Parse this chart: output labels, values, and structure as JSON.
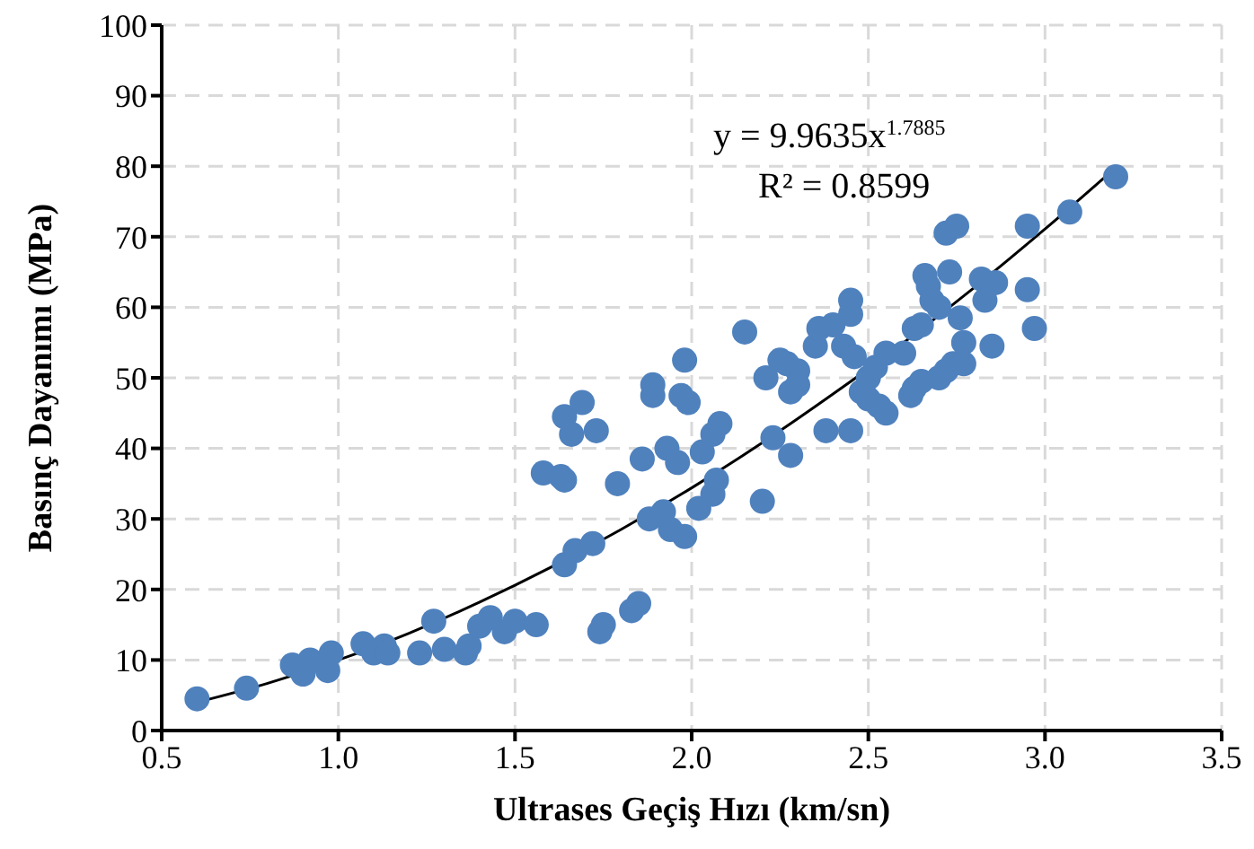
{
  "chart_data": {
    "type": "scatter",
    "xlabel": "Ultrases Geçiş Hızı (km/sn)",
    "ylabel": "Basınç Dayanımı (MPa)",
    "annotations": [
      "y = 9.9635x$^{1.7885}$",
      "R² = 0.8599"
    ],
    "xlim": [
      0.5,
      3.5
    ],
    "xticks": [
      0.5,
      {
        "value": 1,
        "label": "1.0"
      },
      1.5,
      {
        "value": 2,
        "label": "2.0"
      },
      2.5,
      {
        "value": 3,
        "label": "3.0"
      },
      3.5
    ],
    "ylim": [
      0,
      100
    ],
    "yticks": [
      0,
      10,
      20,
      30,
      40,
      50,
      60,
      70,
      80,
      90,
      100
    ],
    "grid": true,
    "legend": false,
    "series": [
      {
        "color": "#4f81bd",
        "marker": "circle",
        "x": [
          0.6,
          0.74,
          0.87,
          0.9,
          0.92,
          0.97,
          0.98,
          1.07,
          1.1,
          1.13,
          1.14,
          1.23,
          1.27,
          1.3,
          1.36,
          1.37,
          1.4,
          1.43,
          1.47,
          1.5,
          1.56,
          1.58,
          1.63,
          1.64,
          1.64,
          1.66,
          1.69,
          1.67,
          1.64,
          1.72,
          1.73,
          1.74,
          1.75,
          1.79,
          1.83,
          1.85,
          1.86,
          1.88,
          1.89,
          1.89,
          1.92,
          1.93,
          1.94,
          1.96,
          1.97,
          1.98,
          1.98,
          1.99,
          2.02,
          2.03,
          2.06,
          2.06,
          2.07,
          2.08,
          2.15,
          2.2,
          2.21,
          2.23,
          2.25,
          2.27,
          2.28,
          2.28,
          2.3,
          2.3,
          2.35,
          2.36,
          2.38,
          2.4,
          2.43,
          2.45,
          2.45,
          2.45,
          2.46,
          2.48,
          2.5,
          2.5,
          2.52,
          2.53,
          2.55,
          2.55,
          2.6,
          2.62,
          2.63,
          2.63,
          2.65,
          2.65,
          2.66,
          2.67,
          2.68,
          2.7,
          2.7,
          2.72,
          2.72,
          2.73,
          2.74,
          2.75,
          2.76,
          2.77,
          2.77,
          2.82,
          2.83,
          2.85,
          2.86,
          2.95,
          2.95,
          2.97,
          3.07,
          3.2
        ],
        "values": [
          4.5,
          6,
          9.3,
          8,
          10,
          8.5,
          11,
          12.3,
          11,
          12,
          11,
          11,
          15.5,
          11.5,
          11,
          12,
          14.8,
          16,
          14,
          15.5,
          15,
          36.5,
          36,
          35.5,
          44.5,
          42,
          46.5,
          25.5,
          23.5,
          26.5,
          42.5,
          14,
          15,
          35,
          17,
          18,
          38.5,
          30,
          47.5,
          49,
          31,
          40,
          28.5,
          38,
          47.5,
          27.5,
          52.5,
          46.5,
          31.5,
          39.5,
          42,
          33.5,
          35.5,
          43.5,
          56.5,
          32.5,
          50,
          41.5,
          52.5,
          52,
          48,
          39,
          51,
          49,
          54.5,
          57,
          42.5,
          57.5,
          54.5,
          61,
          59,
          42.5,
          53,
          48,
          47,
          50,
          51.5,
          46,
          45,
          53.5,
          53.5,
          47.5,
          48.5,
          57,
          57.5,
          49.5,
          64.5,
          63,
          61,
          60,
          50,
          51,
          70.5,
          65,
          52,
          71.5,
          58.5,
          55,
          52,
          64,
          61,
          54.5,
          63.5,
          71.5,
          62.5,
          57,
          73.5,
          78.5
        ]
      },
      {
        "type": "line",
        "color": "#000000",
        "marker": "none",
        "x": [
          0.6,
          0.8,
          1.0,
          1.2,
          1.4,
          1.6,
          1.8,
          2.0,
          2.2,
          2.4,
          2.6,
          2.8,
          3.0,
          3.2
        ],
        "values": [
          4.0,
          6.7,
          10.0,
          13.8,
          18.2,
          23.1,
          28.5,
          34.4,
          40.8,
          47.7,
          55.0,
          62.8,
          71.1,
          79.8
        ]
      }
    ]
  }
}
